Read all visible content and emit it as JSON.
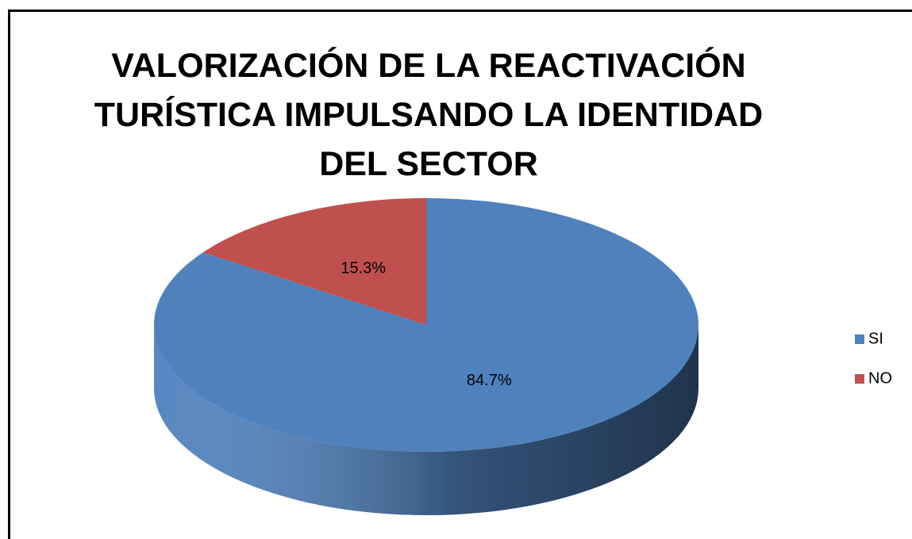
{
  "chart_data": {
    "type": "pie",
    "title": "VALORIZACIÓN DE LA REACTIVACIÓN TURÍSTICA IMPULSANDO LA IDENTIDAD DEL SECTOR",
    "categories": [
      "SI",
      "NO"
    ],
    "values": [
      84.7,
      15.3
    ],
    "value_labels": [
      "84.7%",
      "15.3%"
    ],
    "colors": [
      "#4f81bd",
      "#c0504d"
    ],
    "legend": "right"
  }
}
